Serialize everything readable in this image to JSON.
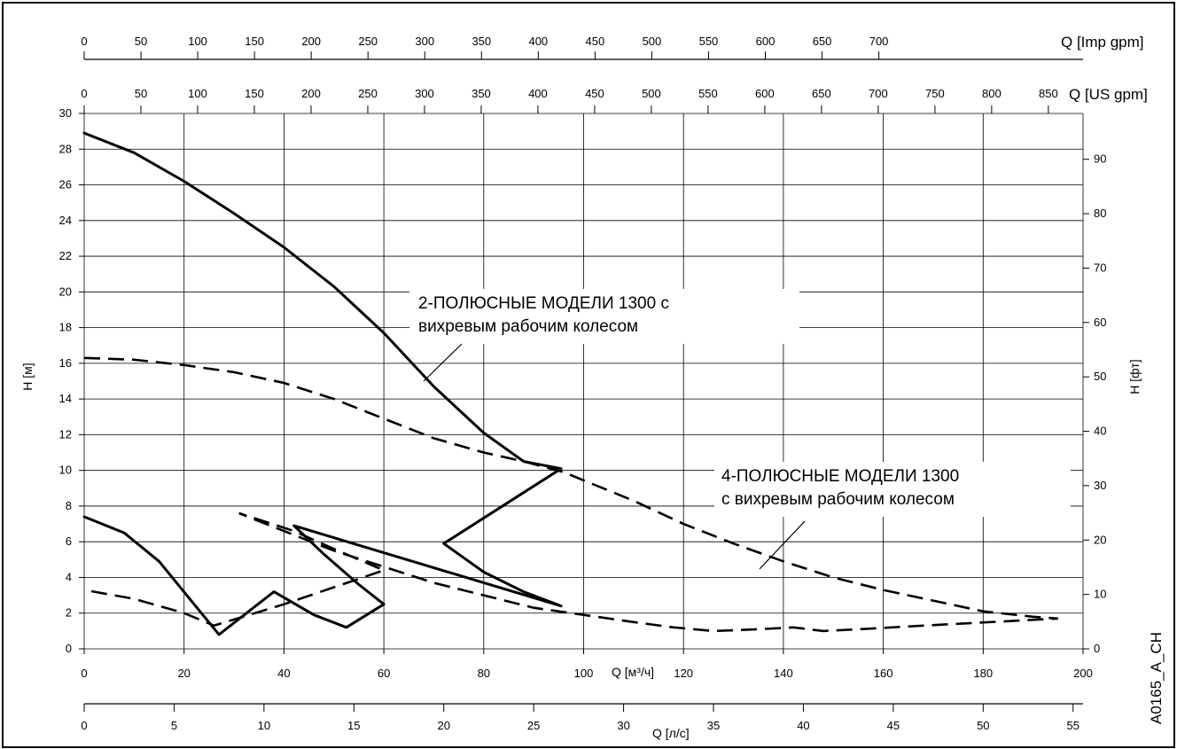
{
  "chart_data": {
    "type": "line",
    "x": {
      "label": "Q [м³/ч]",
      "range": [
        0,
        200
      ],
      "ticks": [
        0,
        20,
        40,
        60,
        80,
        100,
        120,
        140,
        160,
        180,
        200
      ]
    },
    "y_left": {
      "label": "H [м]",
      "range": [
        0,
        30
      ],
      "ticks": [
        0,
        2,
        4,
        6,
        8,
        10,
        12,
        14,
        16,
        18,
        20,
        22,
        24,
        26,
        28,
        30
      ]
    },
    "y_right": {
      "label": "H [фт]",
      "ticks": [
        0,
        10,
        20,
        30,
        40,
        50,
        60,
        70,
        80,
        90
      ]
    },
    "top_axis_imp": {
      "label": "Q [Imp gpm]",
      "ticks": [
        0,
        50,
        100,
        150,
        200,
        250,
        300,
        350,
        400,
        450,
        500,
        550,
        600,
        650,
        700
      ]
    },
    "top_axis_us": {
      "label": "Q [US gpm]",
      "ticks": [
        0,
        50,
        100,
        150,
        200,
        250,
        300,
        350,
        400,
        450,
        500,
        550,
        600,
        650,
        700,
        750,
        800,
        850
      ]
    },
    "bottom_axis_ls": {
      "label": "Q [л/с]",
      "ticks": [
        0,
        5,
        10,
        15,
        20,
        25,
        30,
        35,
        40,
        45,
        50,
        55
      ]
    },
    "grid": true,
    "series": [
      {
        "style": "solid",
        "points": [
          [
            0,
            28.9
          ],
          [
            10,
            27.8
          ],
          [
            20,
            26.2
          ],
          [
            30,
            24.4
          ],
          [
            40,
            22.5
          ],
          [
            50,
            20.3
          ],
          [
            60,
            17.7
          ],
          [
            70,
            14.7
          ],
          [
            80,
            12.1
          ],
          [
            88,
            10.5
          ],
          [
            95.5,
            10.1
          ],
          [
            72,
            5.9
          ],
          [
            80,
            4.3
          ],
          [
            88,
            3.2
          ],
          [
            95.5,
            2.4
          ],
          [
            42,
            6.9
          ],
          [
            48,
            5.3
          ],
          [
            55,
            3.6
          ],
          [
            60,
            2.5
          ],
          [
            52.5,
            1.2
          ],
          [
            46,
            1.9
          ],
          [
            38,
            3.2
          ],
          [
            27,
            0.8
          ],
          [
            22,
            2.5
          ],
          [
            15,
            4.9
          ],
          [
            8,
            6.5
          ],
          [
            0,
            7.4
          ]
        ]
      },
      {
        "style": "dashed",
        "points": [
          [
            0,
            16.3
          ],
          [
            10,
            16.2
          ],
          [
            20,
            15.9
          ],
          [
            30,
            15.5
          ],
          [
            40,
            14.9
          ],
          [
            50,
            14.0
          ],
          [
            60,
            12.9
          ],
          [
            70,
            11.8
          ],
          [
            80,
            11.0
          ],
          [
            88,
            10.5
          ],
          [
            96,
            9.9
          ],
          [
            110,
            8.3
          ],
          [
            120,
            7.0
          ],
          [
            130,
            5.9
          ],
          [
            140,
            4.9
          ],
          [
            150,
            4.0
          ],
          [
            160,
            3.3
          ],
          [
            170,
            2.7
          ],
          [
            180,
            2.1
          ],
          [
            190,
            1.8
          ],
          [
            195,
            1.7
          ],
          [
            168,
            1.3
          ],
          [
            155,
            1.1
          ],
          [
            148,
            1.0
          ],
          [
            142,
            1.2
          ],
          [
            135,
            1.1
          ],
          [
            126,
            1.0
          ],
          [
            118,
            1.2
          ],
          [
            110,
            1.5
          ],
          [
            100,
            1.9
          ],
          [
            90,
            2.3
          ],
          [
            70,
            3.7
          ],
          [
            60,
            4.6
          ],
          [
            50,
            5.5
          ],
          [
            40,
            6.6
          ],
          [
            31,
            7.6
          ],
          [
            42,
            6.6
          ],
          [
            50,
            5.6
          ],
          [
            60,
            4.4
          ],
          [
            40,
            2.5
          ],
          [
            26,
            1.3
          ],
          [
            20,
            2.0
          ],
          [
            10,
            2.8
          ],
          [
            0,
            3.3
          ]
        ]
      }
    ],
    "annotations": [
      {
        "lines": [
          "2-ПОЛЮСНЫЕ МОДЕЛИ 1300 с",
          "вихревым рабочим колесом"
        ]
      },
      {
        "lines": [
          "4-ПОЛЮСНЫЕ МОДЕЛИ 1300",
          "с вихревым рабочим колесом"
        ]
      }
    ],
    "code": "A0165_A_CH"
  }
}
